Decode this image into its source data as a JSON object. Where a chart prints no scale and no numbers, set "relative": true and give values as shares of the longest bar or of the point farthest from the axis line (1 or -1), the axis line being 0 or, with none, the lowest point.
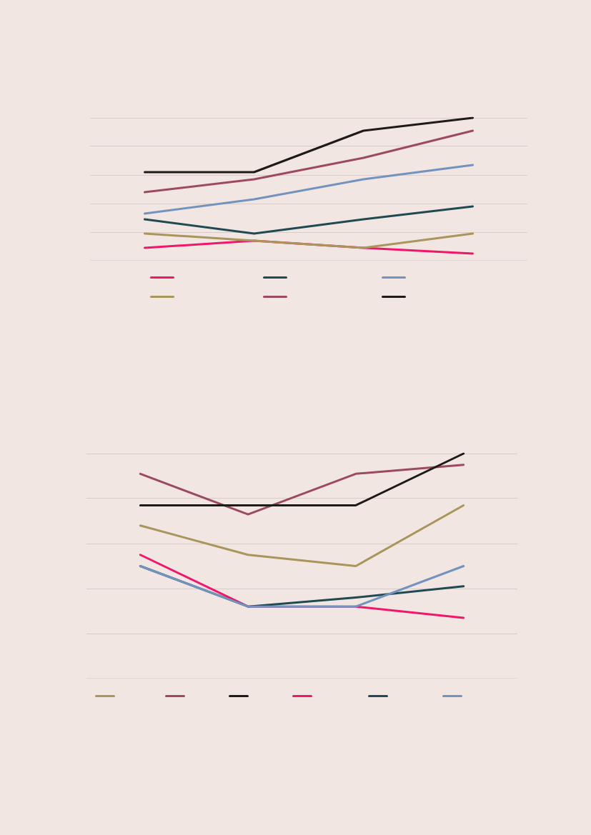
{
  "chart_data": [
    {
      "type": "line",
      "relative": true,
      "categories": [
        null,
        null,
        null,
        null
      ],
      "grid": "y",
      "marker": "none",
      "line_style": "solid",
      "series": [
        {
          "color": "#f0166a",
          "values": [
            0.09,
            0.14,
            0.09,
            0.05
          ]
        },
        {
          "color": "#1f4a52",
          "values": [
            0.29,
            0.19,
            0.29,
            0.38
          ]
        },
        {
          "color": "#7393bf",
          "values": [
            0.33,
            0.43,
            0.57,
            0.67
          ]
        },
        {
          "color": "#a8965c",
          "values": [
            0.19,
            0.14,
            0.09,
            0.19
          ]
        },
        {
          "color": "#9c4a5e",
          "values": [
            0.48,
            0.57,
            0.72,
            0.91
          ]
        },
        {
          "color": "#1e1a18",
          "values": [
            0.62,
            0.62,
            0.91,
            1
          ]
        }
      ]
    },
    {
      "type": "line",
      "relative": true,
      "categories": [
        null,
        null,
        null,
        null
      ],
      "grid": "y",
      "marker": "none",
      "line_style": "solid",
      "series": [
        {
          "color": "#a8965c",
          "values": [
            0.68,
            0.55,
            0.5,
            0.77
          ]
        },
        {
          "color": "#9c4a5e",
          "values": [
            0.91,
            0.73,
            0.91,
            0.95
          ]
        },
        {
          "color": "#1e1a18",
          "values": [
            0.77,
            0.77,
            0.77,
            1
          ]
        },
        {
          "color": "#f0166a",
          "values": [
            0.55,
            0.32,
            0.32,
            0.27
          ]
        },
        {
          "color": "#1f4a52",
          "values": [
            0.5,
            0.32,
            0.36,
            0.41
          ]
        },
        {
          "color": "#7393bf",
          "values": [
            0.5,
            0.32,
            0.32,
            0.5
          ]
        }
      ]
    }
  ]
}
